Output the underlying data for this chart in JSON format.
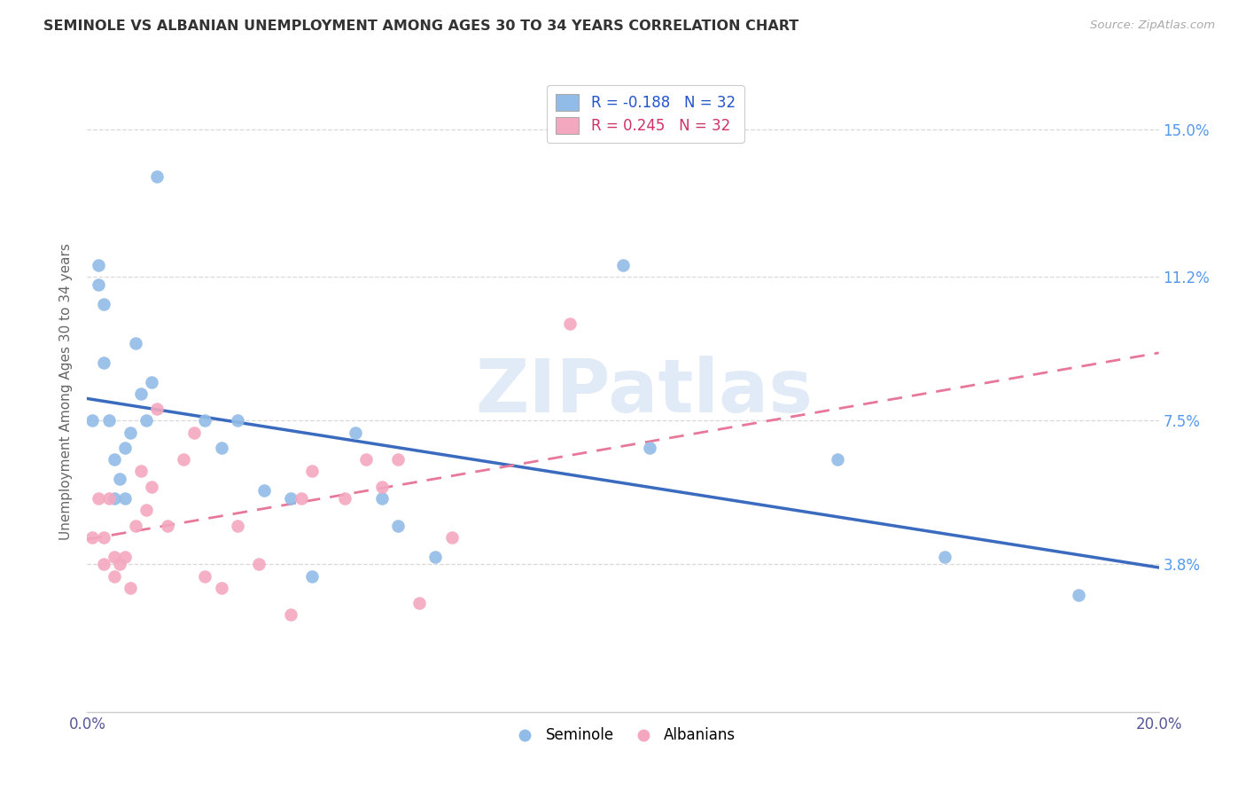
{
  "title": "SEMINOLE VS ALBANIAN UNEMPLOYMENT AMONG AGES 30 TO 34 YEARS CORRELATION CHART",
  "source": "Source: ZipAtlas.com",
  "ylabel": "Unemployment Among Ages 30 to 34 years",
  "xlim": [
    0.0,
    0.2
  ],
  "ylim": [
    0.0,
    0.165
  ],
  "yticks": [
    0.038,
    0.075,
    0.112,
    0.15
  ],
  "ytick_labels": [
    "3.8%",
    "7.5%",
    "11.2%",
    "15.0%"
  ],
  "xticks": [
    0.0,
    0.04,
    0.08,
    0.12,
    0.16,
    0.2
  ],
  "xtick_labels": [
    "0.0%",
    "",
    "",
    "",
    "",
    "20.0%"
  ],
  "seminole_R": "-0.188",
  "seminole_N": "32",
  "albanian_R": "0.245",
  "albanian_N": "32",
  "seminole_color": "#92bce8",
  "albanian_color": "#f4a8bf",
  "trendline_seminole_color": "#3a6bbf",
  "trendline_albanian_color": "#e8789a",
  "background_color": "#ffffff",
  "grid_color": "#d8d8d8",
  "watermark": "ZIPatlas",
  "seminole_x": [
    0.001,
    0.002,
    0.002,
    0.003,
    0.003,
    0.004,
    0.005,
    0.005,
    0.006,
    0.007,
    0.007,
    0.008,
    0.009,
    0.01,
    0.011,
    0.012,
    0.013,
    0.022,
    0.025,
    0.028,
    0.033,
    0.038,
    0.042,
    0.05,
    0.055,
    0.058,
    0.065,
    0.1,
    0.105,
    0.14,
    0.16,
    0.185
  ],
  "seminole_y": [
    0.075,
    0.11,
    0.115,
    0.105,
    0.09,
    0.075,
    0.065,
    0.055,
    0.06,
    0.068,
    0.055,
    0.072,
    0.095,
    0.082,
    0.075,
    0.085,
    0.138,
    0.075,
    0.068,
    0.075,
    0.057,
    0.055,
    0.035,
    0.072,
    0.055,
    0.048,
    0.04,
    0.115,
    0.068,
    0.065,
    0.04,
    0.03
  ],
  "albanian_x": [
    0.001,
    0.002,
    0.003,
    0.003,
    0.004,
    0.005,
    0.005,
    0.006,
    0.007,
    0.008,
    0.009,
    0.01,
    0.011,
    0.012,
    0.013,
    0.015,
    0.018,
    0.02,
    0.022,
    0.025,
    0.028,
    0.032,
    0.038,
    0.04,
    0.042,
    0.048,
    0.052,
    0.055,
    0.058,
    0.062,
    0.068,
    0.09
  ],
  "albanian_y": [
    0.045,
    0.055,
    0.045,
    0.038,
    0.055,
    0.04,
    0.035,
    0.038,
    0.04,
    0.032,
    0.048,
    0.062,
    0.052,
    0.058,
    0.078,
    0.048,
    0.065,
    0.072,
    0.035,
    0.032,
    0.048,
    0.038,
    0.025,
    0.055,
    0.062,
    0.055,
    0.065,
    0.058,
    0.065,
    0.028,
    0.045,
    0.1
  ]
}
